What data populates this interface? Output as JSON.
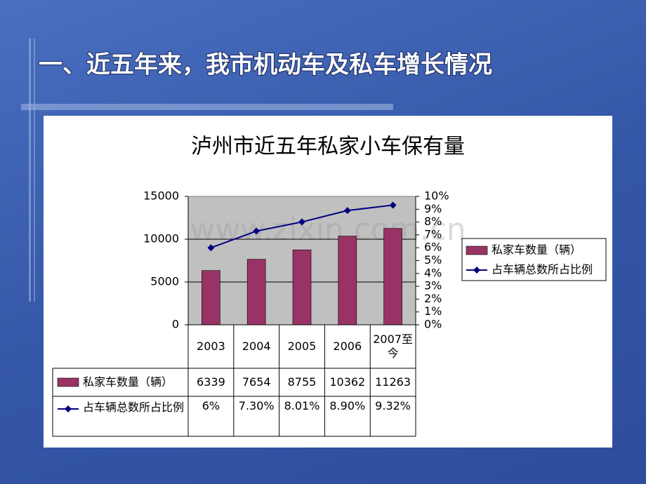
{
  "slide_title": "一、近五年来，我市机动车及私车增长情况",
  "watermark": "www.zixin.com.cn",
  "chart_data": {
    "type": "bar-line",
    "title": "泸州市近五年私家小车保有量",
    "categories": [
      "2003",
      "2004",
      "2005",
      "2006",
      "2007至今"
    ],
    "series": [
      {
        "name": "私家车数量（辆）",
        "type": "bar",
        "color": "#993366",
        "values": [
          6339,
          7654,
          8755,
          10362,
          11263
        ]
      },
      {
        "name": "占车辆总数所占比例",
        "type": "line",
        "color": "#000080",
        "axis": "y2",
        "values": [
          6,
          7.3,
          8.01,
          8.9,
          9.32
        ],
        "value_labels": [
          "6%",
          "7.30%",
          "8.01%",
          "8.90%",
          "9.32%"
        ]
      }
    ],
    "ylim": [
      0,
      15000
    ],
    "yticks": [
      0,
      5000,
      10000,
      15000
    ],
    "y2lim": [
      0,
      10
    ],
    "y2ticks": [
      {
        "value": 0,
        "label": "0%"
      },
      {
        "value": 1,
        "label": "1%"
      },
      {
        "value": 2,
        "label": "2%"
      },
      {
        "value": 3,
        "label": "3%"
      },
      {
        "value": 4,
        "label": "4%"
      },
      {
        "value": 5,
        "label": "5%"
      },
      {
        "value": 6,
        "label": "6%"
      },
      {
        "value": 7,
        "label": "7%"
      },
      {
        "value": 8,
        "label": "8%"
      },
      {
        "value": 9,
        "label": "9%"
      },
      {
        "value": 10,
        "label": "10%"
      }
    ],
    "grid": true,
    "legend": "right"
  }
}
